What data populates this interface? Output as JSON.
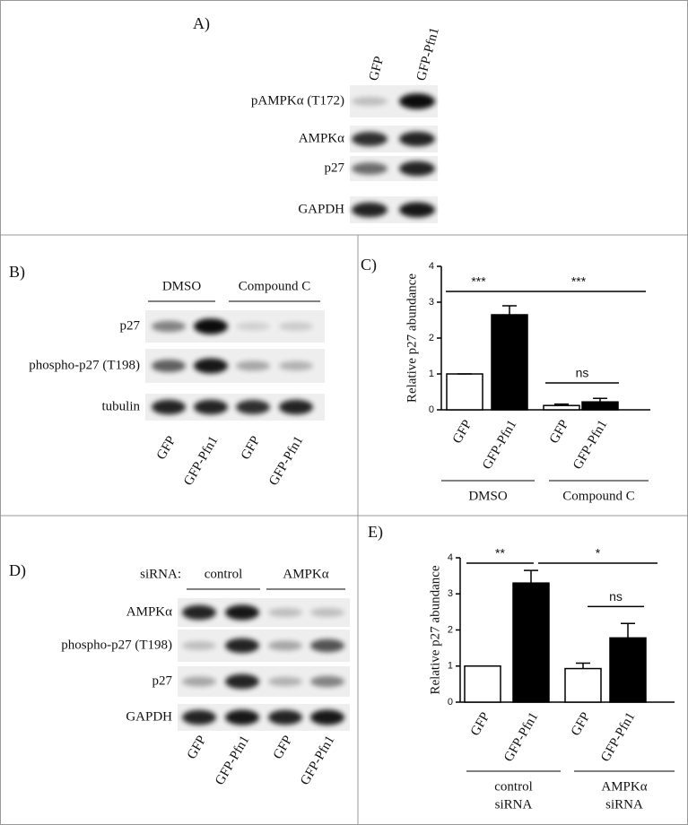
{
  "panels": {
    "a": {
      "label": "A)",
      "lanes": [
        "GFP",
        "GFP-Pfn1"
      ],
      "rows": [
        "pAMPKα (T172)",
        "AMPKα",
        "p27",
        "GAPDH"
      ]
    },
    "b": {
      "label": "B)",
      "groups": [
        "DMSO",
        "Compound C"
      ],
      "lanes": [
        "GFP",
        "GFP-Pfn1",
        "GFP",
        "GFP-Pfn1"
      ],
      "rows": [
        "p27",
        "phospho-p27 (T198)",
        "tubulin"
      ]
    },
    "d": {
      "label": "D)",
      "prefix": "siRNA:",
      "groups": [
        "control",
        "AMPKα"
      ],
      "lanes": [
        "GFP",
        "GFP-Pfn1",
        "GFP",
        "GFP-Pfn1"
      ],
      "rows": [
        "AMPKα",
        "phospho-p27 (T198)",
        "p27",
        "GAPDH"
      ]
    }
  },
  "chart_data": [
    {
      "type": "bar",
      "title": "C)",
      "y_label": "Relative p27 abundance",
      "categories": [
        "GFP",
        "GFP-Pfn1",
        "GFP",
        "GFP-Pfn1"
      ],
      "values": [
        1,
        2.65,
        0.12,
        0.22
      ],
      "errors": [
        0,
        0.25,
        0.04,
        0.1
      ],
      "colors": [
        "#ffffff",
        "#000000",
        "#ffffff",
        "#000000"
      ],
      "groups": [
        [
          "DMSO"
        ],
        [
          "Compound C"
        ]
      ],
      "annotations": [
        {
          "text": "***",
          "y": 3.3
        },
        {
          "text": "***",
          "y": 3.3
        },
        {
          "text": "ns",
          "y": 0.75
        }
      ],
      "ylim": [
        0,
        4
      ],
      "yticks": [
        0,
        1,
        2,
        3,
        4
      ]
    },
    {
      "type": "bar",
      "title": "E)",
      "y_label": "Relative p27 abundance",
      "categories": [
        "GFP",
        "GFP-Pfn1",
        "GFP",
        "GFP-Pfn1"
      ],
      "values": [
        1,
        3.3,
        0.93,
        1.78
      ],
      "errors": [
        0,
        0.35,
        0.15,
        0.4
      ],
      "colors": [
        "#ffffff",
        "#000000",
        "#ffffff",
        "#000000"
      ],
      "groups": [
        [
          "control",
          "siRNA"
        ],
        [
          "AMPKα",
          "siRNA"
        ]
      ],
      "annotations": [
        {
          "text": "**",
          "y": 3.85
        },
        {
          "text": "*",
          "y": 3.85
        },
        {
          "text": "ns",
          "y": 2.65
        }
      ],
      "ylim": [
        0,
        4
      ],
      "yticks": [
        0,
        1,
        2,
        3,
        4
      ]
    }
  ]
}
